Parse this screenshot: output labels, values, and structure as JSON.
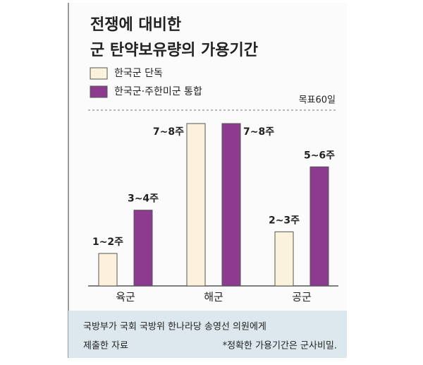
{
  "chart_data": {
    "type": "bar",
    "title": "전쟁에 대비한",
    "subtitle": "군 탄약보유량의 가용기간",
    "target_label": "목표60일",
    "categories": [
      "육군",
      "해군",
      "공군"
    ],
    "series": [
      {
        "name": "한국군 단독",
        "color": "#fcf2dc",
        "values": [
          1.5,
          7.5,
          2.5
        ],
        "value_labels": [
          "1~2주",
          "7~8주",
          "2~3주"
        ]
      },
      {
        "name": "한국군·주한미군 통합",
        "color": "#8c3b8e",
        "values": [
          3.5,
          7.5,
          5.5
        ],
        "value_labels": [
          "3~4주",
          "7~8주",
          "5~6주"
        ]
      }
    ],
    "source": "국방부가 국회 국방위 한나라당 송영선 의원에게",
    "source_line2": "제출한 자료",
    "note": "*정확한 가용기간은 군사비밀."
  }
}
